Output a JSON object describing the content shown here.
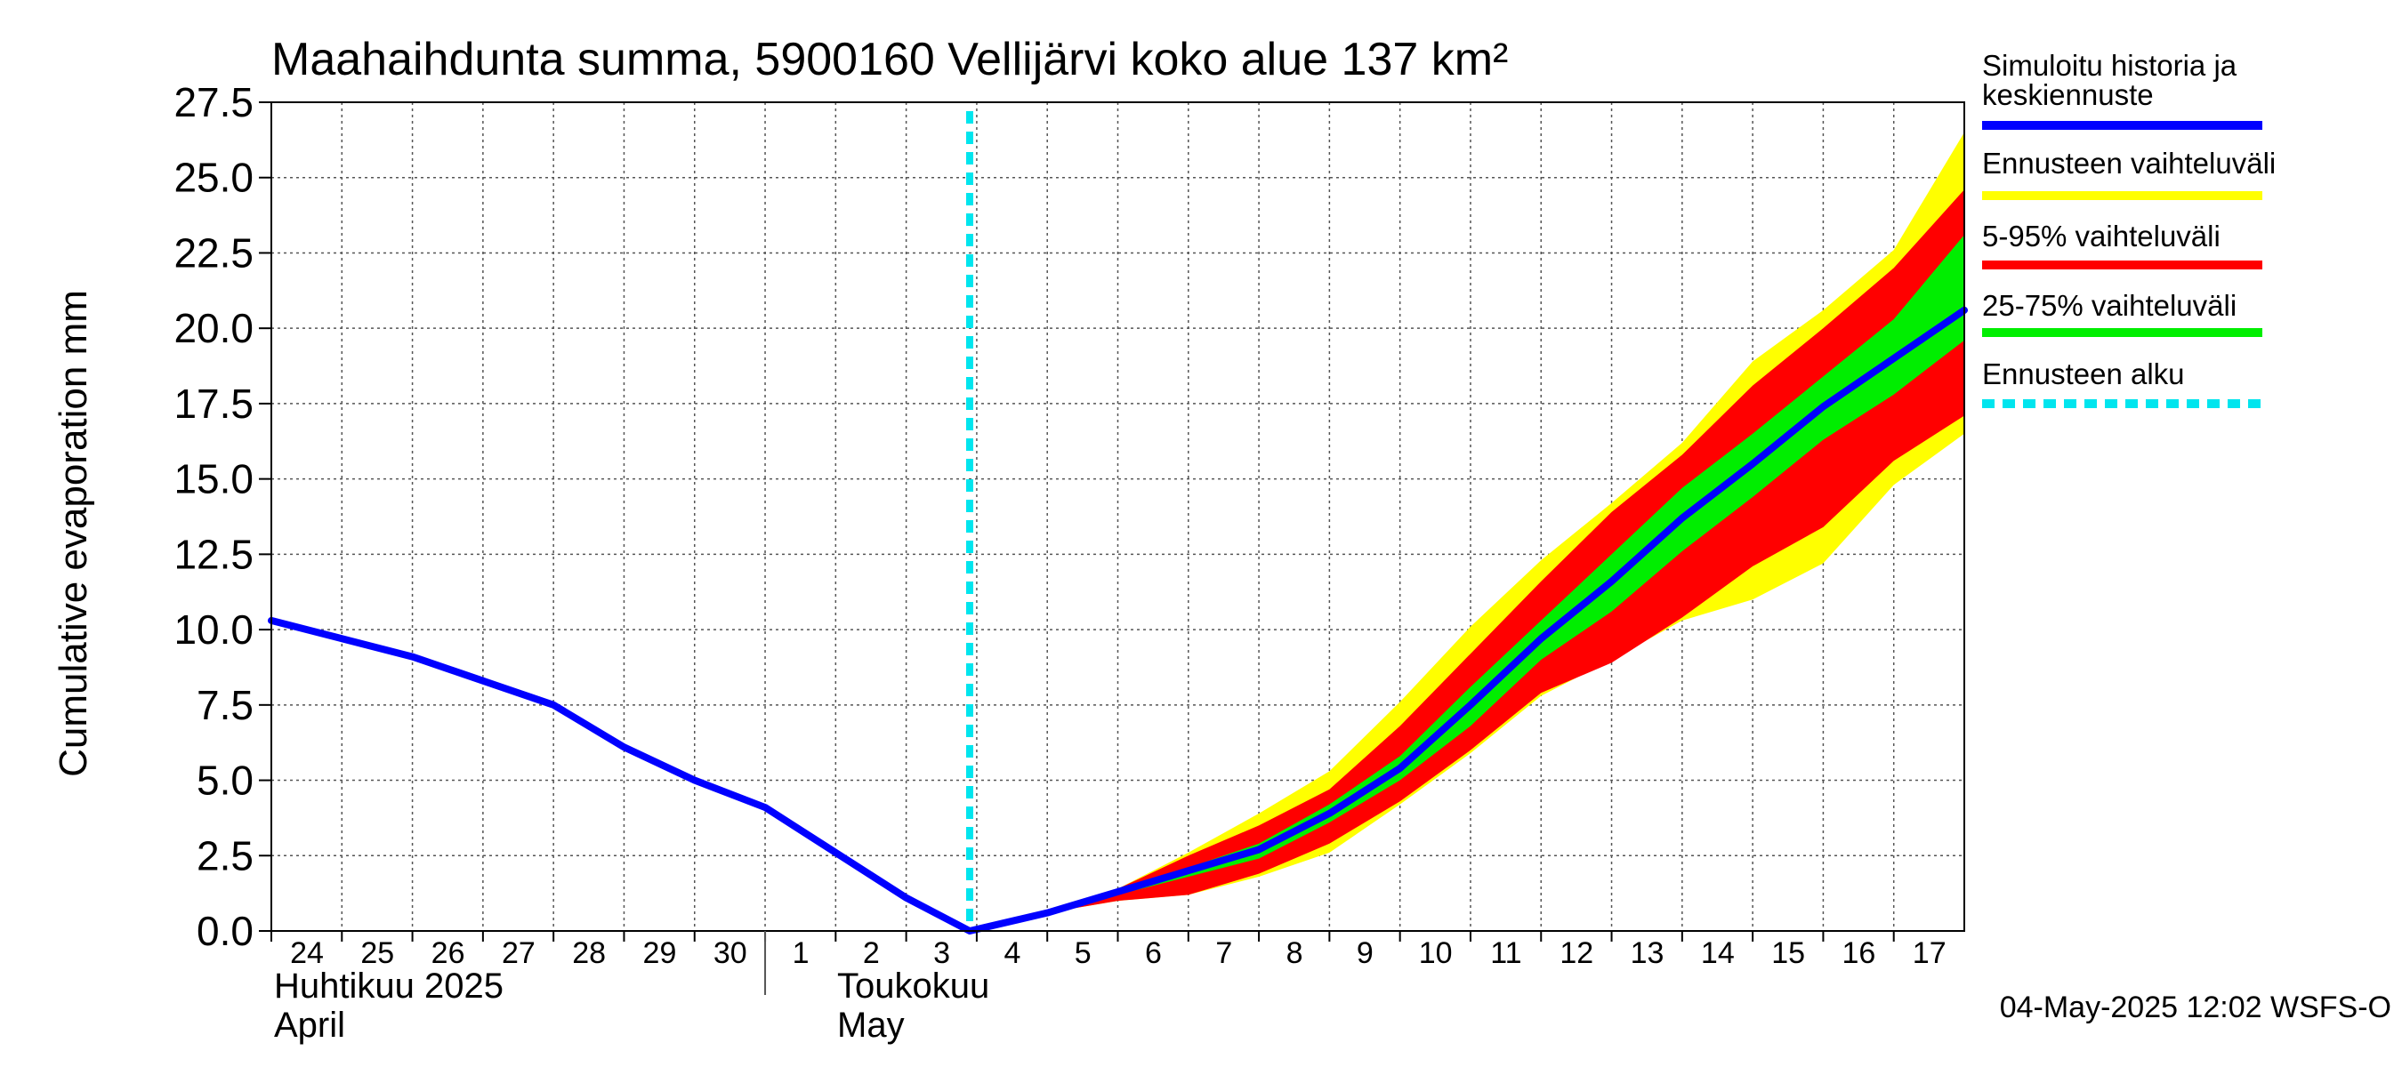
{
  "chart_data": {
    "type": "area",
    "title": "Maahaihdunta summa, 5900160 Vellijärvi koko alue 137 km²",
    "ylabel": "Cumulative evaporation   mm",
    "ylim": [
      0,
      27.5
    ],
    "yticks": [
      "0.0",
      "2.5",
      "5.0",
      "7.5",
      "10.0",
      "12.5",
      "15.0",
      "17.5",
      "20.0",
      "22.5",
      "25.0",
      "27.5"
    ],
    "ytick_values": [
      0,
      2.5,
      5,
      7.5,
      10,
      12.5,
      15,
      17.5,
      20,
      22.5,
      25,
      27.5
    ],
    "x_day_range": [
      -10.0,
      14.0
    ],
    "x_ticks": [
      {
        "label": "24",
        "d": -10
      },
      {
        "label": "25",
        "d": -9
      },
      {
        "label": "26",
        "d": -8
      },
      {
        "label": "27",
        "d": -7
      },
      {
        "label": "28",
        "d": -6
      },
      {
        "label": "29",
        "d": -5
      },
      {
        "label": "30",
        "d": -4
      },
      {
        "label": "1",
        "d": -3
      },
      {
        "label": "2",
        "d": -2
      },
      {
        "label": "3",
        "d": -1
      },
      {
        "label": "4",
        "d": 0
      },
      {
        "label": "5",
        "d": 1
      },
      {
        "label": "6",
        "d": 2
      },
      {
        "label": "7",
        "d": 3
      },
      {
        "label": "8",
        "d": 4
      },
      {
        "label": "9",
        "d": 5
      },
      {
        "label": "10",
        "d": 6
      },
      {
        "label": "11",
        "d": 7
      },
      {
        "label": "12",
        "d": 8
      },
      {
        "label": "13",
        "d": 9
      },
      {
        "label": "14",
        "d": 10
      },
      {
        "label": "15",
        "d": 11
      },
      {
        "label": "16",
        "d": 12
      },
      {
        "label": "17",
        "d": 13
      }
    ],
    "month_labels": {
      "april_fi": "Huhtikuu  2025",
      "april_en": "April",
      "may_fi": "Toukokuu",
      "may_en": "May"
    },
    "month_boundary_d": -3,
    "forecast_start_d": -0.1,
    "colors": {
      "history": "#0000ff",
      "range_full": "#ffff00",
      "range_5_95": "#ff0000",
      "range_25_75": "#00ee00",
      "forecast_start": "#00e5ee",
      "grid": "#555555"
    },
    "series": {
      "history": {
        "name": "Simuloitu historia ja keskiennuste",
        "d": [
          -10,
          -9,
          -8,
          -7,
          -6,
          -5,
          -4,
          -3,
          -2,
          -1,
          -0.1,
          1,
          2,
          3,
          4,
          5,
          6,
          7,
          8,
          9,
          10,
          11,
          12,
          13,
          14
        ],
        "values": [
          10.3,
          9.7,
          9.1,
          8.3,
          7.5,
          6.1,
          5.0,
          4.1,
          2.6,
          1.1,
          0.0,
          0.6,
          1.3,
          2.0,
          2.7,
          3.9,
          5.4,
          7.5,
          9.7,
          11.6,
          13.7,
          15.5,
          17.4,
          19.0,
          20.6
        ]
      },
      "band_d": [
        -0.1,
        1,
        2,
        3,
        4,
        5,
        6,
        7,
        8,
        9,
        10,
        11,
        12,
        13,
        14
      ],
      "full_low": [
        0.0,
        0.6,
        1.0,
        1.2,
        1.8,
        2.6,
        4.2,
        5.9,
        7.8,
        9.0,
        10.3,
        11.0,
        12.2,
        14.8,
        16.5
      ],
      "full_high": [
        0.0,
        0.6,
        1.4,
        2.6,
        3.9,
        5.3,
        7.6,
        10.1,
        12.3,
        14.2,
        16.2,
        18.9,
        20.6,
        22.6,
        26.5
      ],
      "p5": [
        0.0,
        0.6,
        1.0,
        1.2,
        1.9,
        2.9,
        4.3,
        6.0,
        7.9,
        8.9,
        10.4,
        12.1,
        13.4,
        15.6,
        17.1
      ],
      "p95": [
        0.0,
        0.6,
        1.4,
        2.5,
        3.5,
        4.7,
        6.8,
        9.2,
        11.6,
        13.9,
        15.8,
        18.1,
        20.0,
        22.0,
        24.6
      ],
      "p25": [
        0.0,
        0.6,
        1.2,
        1.8,
        2.4,
        3.6,
        5.0,
        6.8,
        9.0,
        10.6,
        12.6,
        14.4,
        16.3,
        17.8,
        19.6
      ],
      "p75": [
        0.0,
        0.6,
        1.3,
        2.1,
        2.9,
        4.2,
        5.8,
        8.1,
        10.3,
        12.5,
        14.7,
        16.5,
        18.4,
        20.3,
        23.1
      ]
    },
    "legend": [
      {
        "label": "Simuloitu historia ja",
        "label2": "keskiennuste",
        "color": "#0000ff",
        "style": "solid"
      },
      {
        "label": "Ennusteen vaihteluväli",
        "color": "#ffff00",
        "style": "solid"
      },
      {
        "label": "5-95% vaihteluväli",
        "color": "#ff0000",
        "style": "solid"
      },
      {
        "label": "25-75% vaihteluväli",
        "color": "#00ee00",
        "style": "solid"
      },
      {
        "label": "Ennusteen alku",
        "color": "#00e5ee",
        "style": "dashed"
      }
    ],
    "legend_position": "right",
    "timestamp": "04-May-2025 12:02 WSFS-O"
  }
}
